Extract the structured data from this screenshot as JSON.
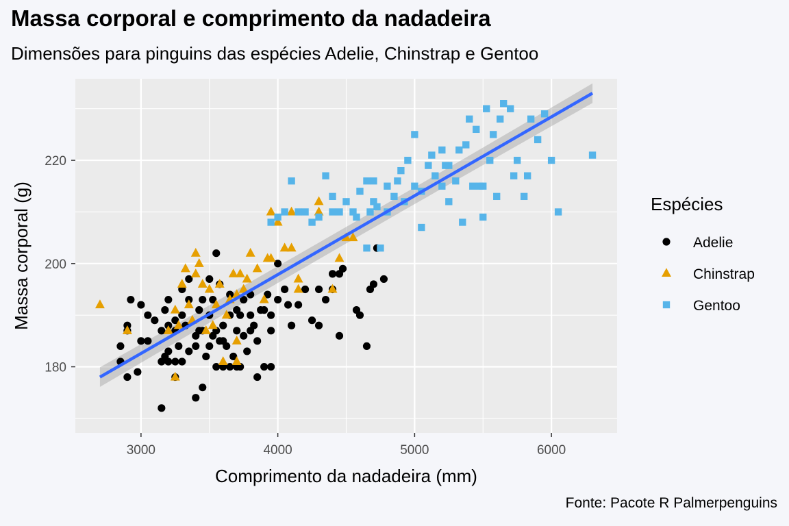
{
  "chart_data": {
    "type": "scatter",
    "title": "Massa corporal e comprimento da nadadeira",
    "subtitle": "Dimensões para pinguins das espécies Adelie, Chinstrap e Gentoo",
    "caption": "Fonte: Pacote R Palmerpenguins",
    "xlabel": "Comprimento da nadadeira (mm)",
    "ylabel": "Massa corporal (g)",
    "xlim": [
      2520,
      6480
    ],
    "ylim": [
      167.2,
      235.8
    ],
    "xticks": [
      3000,
      4000,
      5000,
      6000
    ],
    "yticks": [
      180,
      200,
      220
    ],
    "xtick_labels": [
      "3000",
      "4000",
      "5000",
      "6000"
    ],
    "ytick_labels": [
      "180",
      "200",
      "220"
    ],
    "grid": true,
    "legend": {
      "title": "Espécies",
      "position": "right",
      "entries": [
        {
          "label": "Adelie",
          "shape": "circle",
          "color": "#000000"
        },
        {
          "label": "Chinstrap",
          "shape": "triangle",
          "color": "#E69F00"
        },
        {
          "label": "Gentoo",
          "shape": "square",
          "color": "#56B4E9"
        }
      ]
    },
    "trend": {
      "method": "lm",
      "x": [
        2700,
        6300
      ],
      "y": [
        178,
        233
      ],
      "band": [
        1.4,
        1.6,
        1.9
      ],
      "color": "#3366FF",
      "band_color": "#999999"
    },
    "series": [
      {
        "name": "Adelie",
        "shape": "circle",
        "color": "#000000",
        "points": [
          [
            2850,
            181
          ],
          [
            2850,
            184
          ],
          [
            2900,
            178
          ],
          [
            2900,
            187
          ],
          [
            2900,
            188
          ],
          [
            2925,
            193
          ],
          [
            2975,
            179
          ],
          [
            3000,
            185
          ],
          [
            3000,
            192
          ],
          [
            3050,
            185
          ],
          [
            3050,
            190
          ],
          [
            3100,
            189
          ],
          [
            3150,
            172
          ],
          [
            3150,
            181
          ],
          [
            3150,
            187
          ],
          [
            3175,
            182
          ],
          [
            3175,
            191
          ],
          [
            3200,
            181
          ],
          [
            3200,
            183
          ],
          [
            3200,
            188
          ],
          [
            3200,
            193
          ],
          [
            3250,
            178
          ],
          [
            3250,
            181
          ],
          [
            3250,
            187
          ],
          [
            3250,
            189
          ],
          [
            3275,
            184
          ],
          [
            3300,
            181
          ],
          [
            3300,
            190
          ],
          [
            3300,
            195
          ],
          [
            3325,
            188
          ],
          [
            3350,
            183
          ],
          [
            3350,
            193
          ],
          [
            3350,
            197
          ],
          [
            3400,
            174
          ],
          [
            3400,
            184
          ],
          [
            3400,
            186
          ],
          [
            3425,
            187
          ],
          [
            3425,
            191
          ],
          [
            3450,
            176
          ],
          [
            3450,
            187
          ],
          [
            3450,
            193
          ],
          [
            3475,
            182
          ],
          [
            3500,
            184
          ],
          [
            3500,
            190
          ],
          [
            3500,
            197
          ],
          [
            3525,
            186
          ],
          [
            3525,
            193
          ],
          [
            3550,
            180
          ],
          [
            3550,
            187
          ],
          [
            3550,
            202
          ],
          [
            3575,
            185
          ],
          [
            3575,
            196
          ],
          [
            3600,
            180
          ],
          [
            3600,
            185
          ],
          [
            3600,
            188
          ],
          [
            3625,
            184
          ],
          [
            3650,
            180
          ],
          [
            3650,
            190
          ],
          [
            3650,
            194
          ],
          [
            3675,
            182
          ],
          [
            3700,
            180
          ],
          [
            3700,
            187
          ],
          [
            3700,
            191
          ],
          [
            3725,
            180
          ],
          [
            3725,
            190
          ],
          [
            3750,
            186
          ],
          [
            3750,
            193
          ],
          [
            3775,
            183
          ],
          [
            3800,
            187
          ],
          [
            3800,
            190
          ],
          [
            3800,
            194
          ],
          [
            3825,
            188
          ],
          [
            3850,
            178
          ],
          [
            3850,
            185
          ],
          [
            3875,
            191
          ],
          [
            3900,
            180
          ],
          [
            3900,
            191
          ],
          [
            3925,
            194
          ],
          [
            3950,
            180
          ],
          [
            3950,
            187
          ],
          [
            3950,
            190
          ],
          [
            4000,
            193
          ],
          [
            4000,
            200
          ],
          [
            4050,
            195
          ],
          [
            4075,
            192
          ],
          [
            4100,
            188
          ],
          [
            4150,
            192
          ],
          [
            4200,
            195
          ],
          [
            4250,
            189
          ],
          [
            4300,
            188
          ],
          [
            4300,
            195
          ],
          [
            4350,
            193
          ],
          [
            4400,
            195
          ],
          [
            4400,
            198
          ],
          [
            4450,
            186
          ],
          [
            4450,
            198
          ],
          [
            4475,
            199
          ],
          [
            4575,
            191
          ],
          [
            4600,
            190
          ],
          [
            4650,
            184
          ],
          [
            4675,
            195
          ],
          [
            4700,
            196
          ],
          [
            4725,
            203
          ],
          [
            4775,
            197
          ]
        ]
      },
      {
        "name": "Chinstrap",
        "shape": "triangle",
        "color": "#E69F00",
        "points": [
          [
            2700,
            192
          ],
          [
            2900,
            187
          ],
          [
            3200,
            187
          ],
          [
            3250,
            178
          ],
          [
            3250,
            191
          ],
          [
            3275,
            188
          ],
          [
            3300,
            196
          ],
          [
            3325,
            199
          ],
          [
            3350,
            192
          ],
          [
            3375,
            189
          ],
          [
            3400,
            198
          ],
          [
            3400,
            202
          ],
          [
            3425,
            200
          ],
          [
            3450,
            196
          ],
          [
            3475,
            187
          ],
          [
            3500,
            195
          ],
          [
            3525,
            188
          ],
          [
            3550,
            192
          ],
          [
            3575,
            196
          ],
          [
            3600,
            181
          ],
          [
            3625,
            190
          ],
          [
            3650,
            193
          ],
          [
            3675,
            198
          ],
          [
            3700,
            181
          ],
          [
            3700,
            185
          ],
          [
            3700,
            194
          ],
          [
            3725,
            198
          ],
          [
            3750,
            195
          ],
          [
            3775,
            197
          ],
          [
            3800,
            202
          ],
          [
            3850,
            199
          ],
          [
            3900,
            193
          ],
          [
            3925,
            201
          ],
          [
            3950,
            210
          ],
          [
            3950,
            201
          ],
          [
            4000,
            208
          ],
          [
            4050,
            203
          ],
          [
            4100,
            203
          ],
          [
            4100,
            210
          ],
          [
            4150,
            197
          ],
          [
            4150,
            195
          ],
          [
            4300,
            210
          ],
          [
            4300,
            212
          ],
          [
            4400,
            195
          ],
          [
            4450,
            201
          ],
          [
            4500,
            205
          ],
          [
            4550,
            205
          ]
        ]
      },
      {
        "name": "Gentoo",
        "shape": "square",
        "color": "#56B4E9",
        "points": [
          [
            3950,
            208
          ],
          [
            4000,
            209
          ],
          [
            4050,
            210
          ],
          [
            4100,
            216
          ],
          [
            4150,
            210
          ],
          [
            4200,
            210
          ],
          [
            4250,
            208
          ],
          [
            4300,
            209
          ],
          [
            4350,
            217
          ],
          [
            4400,
            210
          ],
          [
            4400,
            213
          ],
          [
            4450,
            210
          ],
          [
            4500,
            212
          ],
          [
            4550,
            210
          ],
          [
            4575,
            209
          ],
          [
            4600,
            214
          ],
          [
            4650,
            216
          ],
          [
            4650,
            203
          ],
          [
            4675,
            210
          ],
          [
            4700,
            212
          ],
          [
            4700,
            216
          ],
          [
            4725,
            211
          ],
          [
            4750,
            203
          ],
          [
            4800,
            210
          ],
          [
            4800,
            215
          ],
          [
            4850,
            213
          ],
          [
            4875,
            216
          ],
          [
            4900,
            218
          ],
          [
            4925,
            212
          ],
          [
            4950,
            220
          ],
          [
            5000,
            215
          ],
          [
            5000,
            225
          ],
          [
            5050,
            207
          ],
          [
            5050,
            214
          ],
          [
            5100,
            219
          ],
          [
            5125,
            221
          ],
          [
            5150,
            217
          ],
          [
            5200,
            215
          ],
          [
            5200,
            222
          ],
          [
            5225,
            219
          ],
          [
            5250,
            212
          ],
          [
            5250,
            219
          ],
          [
            5300,
            216
          ],
          [
            5325,
            222
          ],
          [
            5350,
            208
          ],
          [
            5375,
            223
          ],
          [
            5400,
            228
          ],
          [
            5425,
            215
          ],
          [
            5450,
            226
          ],
          [
            5475,
            215
          ],
          [
            5500,
            209
          ],
          [
            5500,
            215
          ],
          [
            5525,
            230
          ],
          [
            5550,
            220
          ],
          [
            5575,
            225
          ],
          [
            5600,
            213
          ],
          [
            5625,
            228
          ],
          [
            5650,
            231
          ],
          [
            5700,
            230
          ],
          [
            5725,
            217
          ],
          [
            5750,
            220
          ],
          [
            5800,
            213
          ],
          [
            5825,
            217
          ],
          [
            5850,
            228
          ],
          [
            5900,
            224
          ],
          [
            5950,
            229
          ],
          [
            6000,
            220
          ],
          [
            6050,
            210
          ],
          [
            6300,
            221
          ]
        ]
      }
    ]
  }
}
